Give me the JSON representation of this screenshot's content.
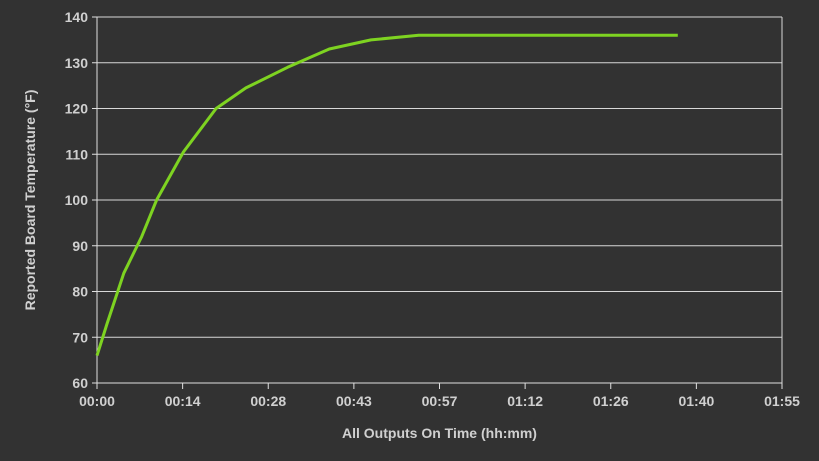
{
  "chart_data": {
    "type": "line",
    "title": "",
    "xlabel": "All Outputs On Time (hh:mm)",
    "ylabel": "Reported Board Temperature (°F)",
    "xlim": [
      0,
      115
    ],
    "ylim": [
      60,
      140
    ],
    "x_unit": "minutes",
    "x_ticks": [
      0,
      14.375,
      28.75,
      43.125,
      57.5,
      71.875,
      86.25,
      100.625,
      115
    ],
    "x_tick_labels": [
      "00:00",
      "00:14",
      "00:28",
      "00:43",
      "00:57",
      "01:12",
      "01:26",
      "01:40",
      "01:55"
    ],
    "y_ticks": [
      60,
      70,
      80,
      90,
      100,
      110,
      120,
      130,
      140
    ],
    "y_tick_labels": [
      "60",
      "70",
      "80",
      "90",
      "100",
      "110",
      "120",
      "130",
      "140"
    ],
    "grid": true,
    "series": [
      {
        "color": "#7ed321",
        "x": [
          0,
          1.7,
          4.5,
          7.5,
          10,
          14.5,
          20,
          25,
          32,
          39,
          46,
          54,
          63,
          75,
          85,
          97.5
        ],
        "y": [
          66,
          73,
          84,
          92,
          100,
          110.5,
          120,
          124.5,
          129,
          133,
          135,
          136,
          136,
          136,
          136,
          136
        ]
      }
    ]
  }
}
